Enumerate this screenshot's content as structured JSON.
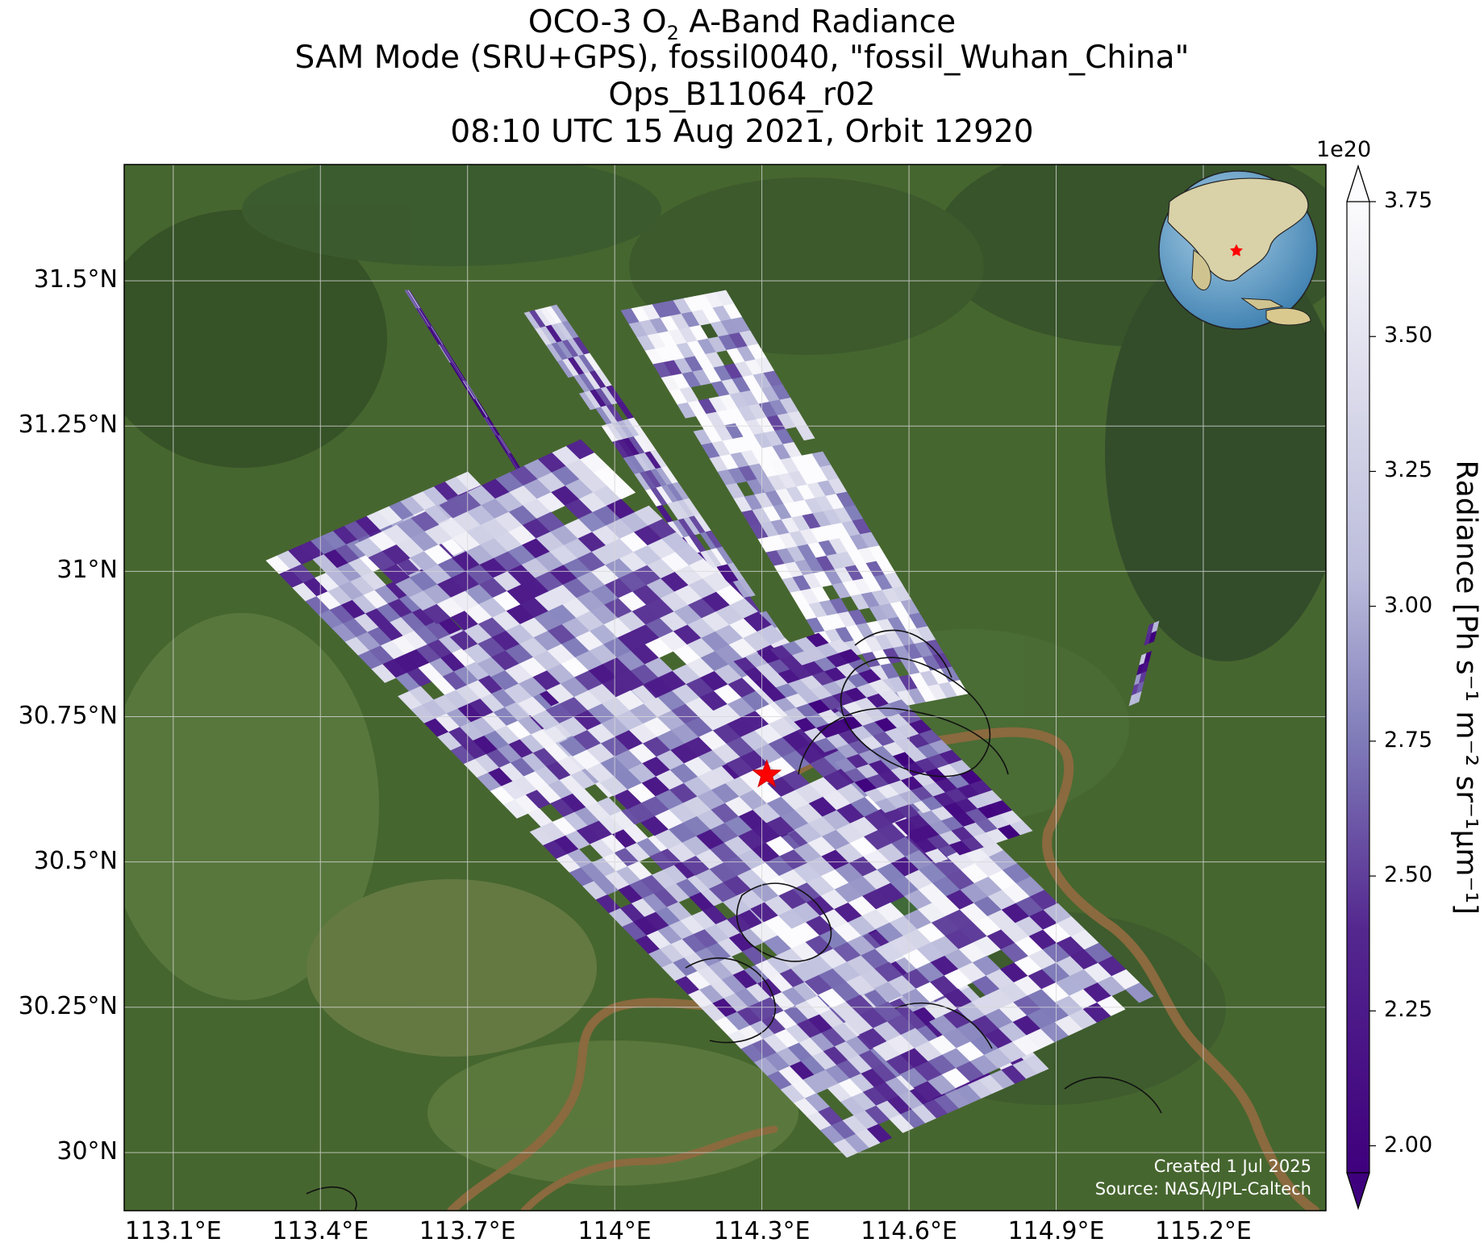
{
  "title": {
    "line1_prefix": "OCO-3 O",
    "line1_sub": "2",
    "line1_suffix": " A-Band Radiance",
    "line2": "SAM Mode (SRU+GPS), fossil0040, \"fossil_Wuhan_China\"",
    "line3": "Ops_B11064_r02",
    "line4": "08:10 UTC 15 Aug 2021, Orbit 12920"
  },
  "map": {
    "lon_ticks": [
      "113.1°E",
      "113.4°E",
      "113.7°E",
      "114°E",
      "114.3°E",
      "114.6°E",
      "114.9°E",
      "115.2°E"
    ],
    "lat_ticks": [
      "31.5°N",
      "31.25°N",
      "31°N",
      "30.75°N",
      "30.5°N",
      "30.25°N",
      "30°N"
    ],
    "lon_range": [
      113.0,
      115.45
    ],
    "lat_range": [
      29.9,
      31.7
    ],
    "target_site": {
      "lon": 114.31,
      "lat": 30.65,
      "marker": "red-star-icon"
    },
    "inset_globe_marker": "red-star-icon",
    "credit_line1": "Created 1 Jul 2025",
    "credit_line2": "Source: NASA/JPL-Caltech"
  },
  "colorbar": {
    "multiplier": "1e20",
    "ticks": [
      "3.75",
      "3.50",
      "3.25",
      "3.00",
      "2.75",
      "2.50",
      "2.25",
      "2.00"
    ],
    "label": "Radiance [Ph s⁻¹ m⁻² sr⁻¹μm⁻¹]",
    "range": [
      1.95,
      3.75
    ],
    "colormap": "Purples_r",
    "color_low": "#3f007d",
    "color_high": "#fcfbfd",
    "extend": "both"
  },
  "colors": {
    "land_dark": "#3c5a2c",
    "land": "#4f6e3a",
    "river": "#8a6a3e",
    "grid": "#d8d8d8",
    "star": "#ff0000"
  }
}
